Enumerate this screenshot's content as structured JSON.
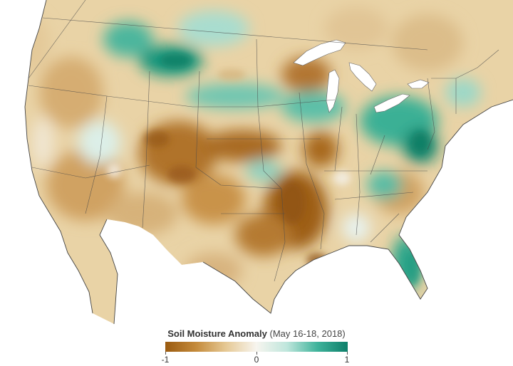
{
  "legend": {
    "title_main": "Soil Moisture Anomaly",
    "title_date": "(May 16-18, 2018)",
    "min_label": "-1",
    "mid_label": "0",
    "max_label": "1",
    "scale_min": -1,
    "scale_max": 1,
    "colors": {
      "dry_strong": "#9a5a0f",
      "dry": "#c48a3a",
      "dry_light": "#e6c995",
      "neutral": "#f7f5ef",
      "wet_light": "#bfe6dc",
      "wet": "#3fb39b",
      "wet_strong": "#0d7f6a"
    }
  },
  "map": {
    "region": "contiguous United States",
    "water_color": "#ffffff",
    "border_color": "#4a4a4a"
  }
}
